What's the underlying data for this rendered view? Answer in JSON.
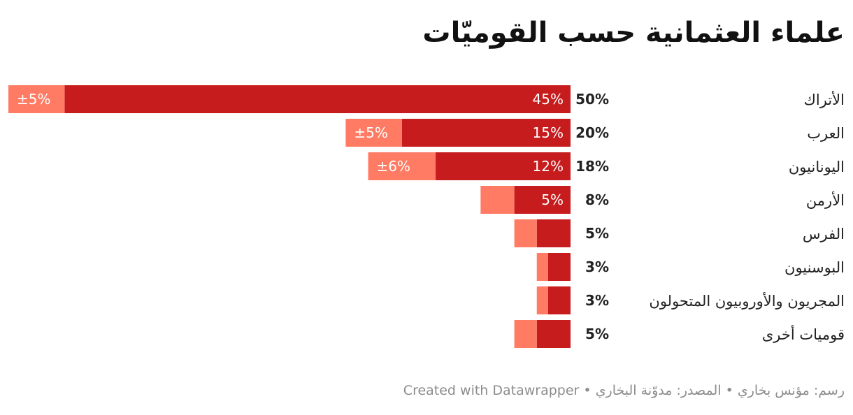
{
  "title": "علماء العثمانية حسب القوميّات",
  "footer": {
    "credit": "رسم: مؤنس بخاري",
    "source": "المصدر: مدوّنة البخاري",
    "tool": "Created with Datawrapper",
    "separator": "•"
  },
  "colors": {
    "main": "#c71c1e",
    "margin": "#ff7b63",
    "label_on_bar": "#ffffff",
    "text": "#222222"
  },
  "chart_data": {
    "type": "bar",
    "orientation": "horizontal-stacked",
    "title": "علماء العثمانية حسب القوميّات",
    "categories": [
      "الأتراك",
      "العرب",
      "اليونانيون",
      "الأرمن",
      "الفرس",
      "البوسنيون",
      "المجريون والأوروبيون المتحولون",
      "قوميات أخرى"
    ],
    "series": [
      {
        "values": [
          45,
          15,
          12,
          5,
          3,
          2,
          2,
          3
        ],
        "labels": [
          "45%",
          "15%",
          "12%",
          "5%",
          "",
          "",
          "",
          ""
        ]
      },
      {
        "values": [
          5,
          5,
          6,
          3,
          2,
          1,
          1,
          2
        ],
        "labels": [
          "±5%",
          "±5%",
          "±6%",
          "",
          "",
          "",
          "",
          ""
        ]
      }
    ],
    "totals": [
      "50%",
      "20%",
      "18%",
      "8%",
      "5%",
      "3%",
      "3%",
      "5%"
    ],
    "xlim": [
      0,
      50
    ]
  }
}
